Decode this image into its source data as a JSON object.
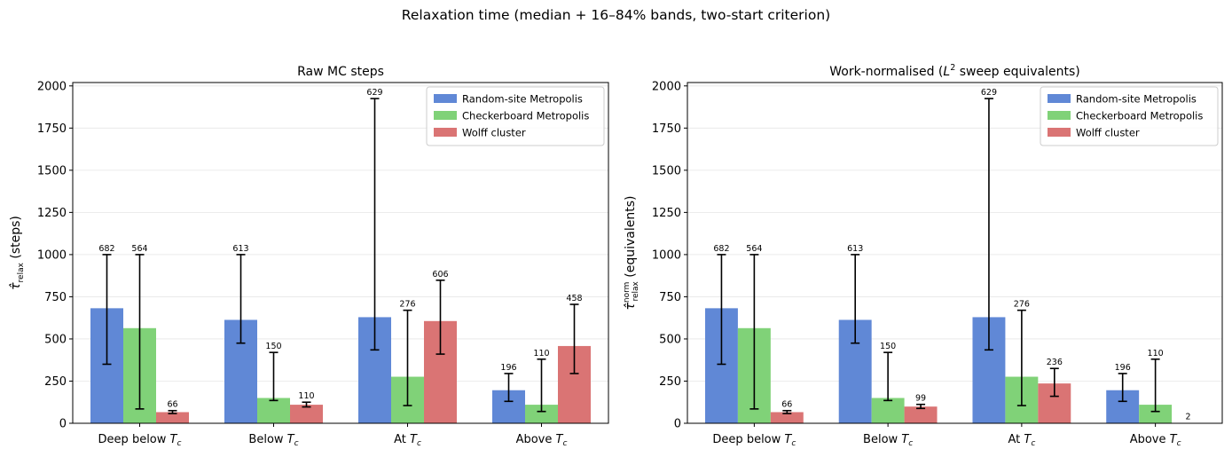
{
  "figure": {
    "suptitle": "Relaxation time (median + 16–84% bands, two-start criterion)"
  },
  "colors": {
    "Random-site Metropolis": "#6088d6",
    "Checkerboard Metropolis": "#80d278",
    "Wolff cluster": "#da7474"
  },
  "chart_data": [
    {
      "type": "bar",
      "title": "Raw MC steps",
      "ylabel": "τ̂relax (steps)",
      "ylabel_main": "τ̂",
      "ylabel_sub": "relax",
      "ylabel_sup": "",
      "ylabel_rest": "(steps)",
      "ylim": [
        0,
        2020
      ],
      "yticks": [
        0,
        250,
        500,
        750,
        1000,
        1250,
        1500,
        1750,
        2000
      ],
      "grid": "y",
      "legend": "top-right",
      "categories": [
        {
          "label": "Deep below ",
          "sub": "c"
        },
        {
          "label": "Below ",
          "sub": "c"
        },
        {
          "label": "At ",
          "sub": "c"
        },
        {
          "label": "Above ",
          "sub": "c"
        }
      ],
      "series": [
        {
          "name": "Random-site Metropolis",
          "values": [
            682,
            613,
            629,
            196
          ],
          "err_low": [
            350,
            475,
            435,
            130
          ],
          "err_high": [
            1000,
            1000,
            1925,
            295
          ],
          "labels": [
            "682",
            "613",
            "629",
            "196"
          ]
        },
        {
          "name": "Checkerboard Metropolis",
          "values": [
            564,
            150,
            276,
            110
          ],
          "err_low": [
            85,
            135,
            105,
            70
          ],
          "err_high": [
            1000,
            420,
            670,
            380
          ],
          "labels": [
            "564",
            "150",
            "276",
            "110"
          ]
        },
        {
          "name": "Wolff cluster",
          "values": [
            66,
            110,
            606,
            458
          ],
          "err_low": [
            58,
            97,
            410,
            295
          ],
          "err_high": [
            75,
            125,
            848,
            705
          ],
          "labels": [
            "66",
            "110",
            "606",
            "458"
          ]
        }
      ]
    },
    {
      "type": "bar",
      "title": "Work-normalised (L² sweep equivalents)",
      "title_pre": "Work-normalised (",
      "title_var": "L",
      "title_sup": "2",
      "title_post": " sweep equivalents)",
      "ylabel": "τ̂normrelax (equivalents)",
      "ylabel_main": "τ̂",
      "ylabel_sub": "relax",
      "ylabel_sup": "norm",
      "ylabel_rest": "(equivalents)",
      "ylim": [
        0,
        2020
      ],
      "yticks": [
        0,
        250,
        500,
        750,
        1000,
        1250,
        1500,
        1750,
        2000
      ],
      "grid": "y",
      "legend": "top-right",
      "categories": [
        {
          "label": "Deep below ",
          "sub": "c"
        },
        {
          "label": "Below ",
          "sub": "c"
        },
        {
          "label": "At ",
          "sub": "c"
        },
        {
          "label": "Above ",
          "sub": "c"
        }
      ],
      "series": [
        {
          "name": "Random-site Metropolis",
          "values": [
            682,
            613,
            629,
            196
          ],
          "err_low": [
            350,
            475,
            435,
            130
          ],
          "err_high": [
            1000,
            1000,
            1925,
            295
          ],
          "labels": [
            "682",
            "613",
            "629",
            "196"
          ]
        },
        {
          "name": "Checkerboard Metropolis",
          "values": [
            564,
            150,
            276,
            110
          ],
          "err_low": [
            85,
            135,
            105,
            70
          ],
          "err_high": [
            1000,
            420,
            670,
            380
          ],
          "labels": [
            "564",
            "150",
            "276",
            "110"
          ]
        },
        {
          "name": "Wolff cluster",
          "values": [
            66,
            99,
            236,
            2
          ],
          "err_low": [
            58,
            88,
            160,
            2
          ],
          "err_high": [
            75,
            112,
            325,
            2
          ],
          "labels": [
            "66",
            "99",
            "236",
            "2"
          ],
          "errorbars": [
            true,
            true,
            true,
            false
          ]
        }
      ]
    }
  ]
}
